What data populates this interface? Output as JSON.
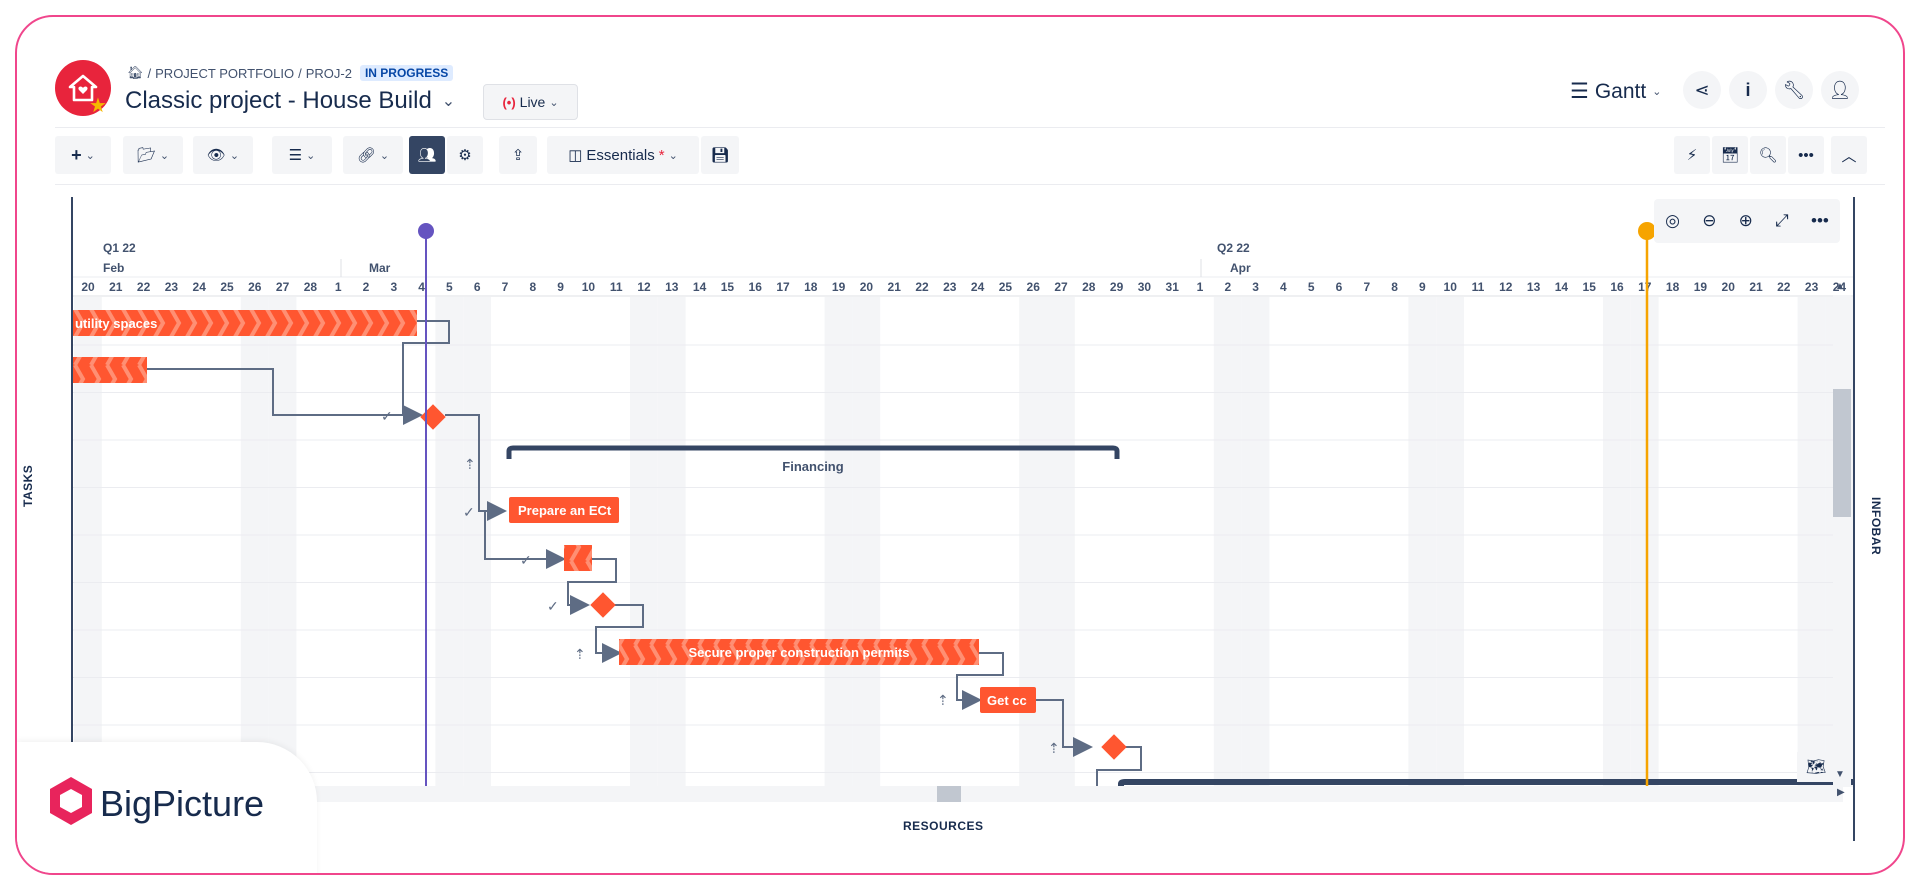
{
  "header": {
    "breadcrumb": [
      "PROJECT PORTFOLIO",
      "PROJ-2"
    ],
    "status_badge": "IN PROGRESS",
    "title": "Classic project - House Build",
    "live_label": "Live",
    "view_label": "Gantt"
  },
  "toolbar": {
    "essentials_label": "Essentials",
    "essentials_marker": "*"
  },
  "timeline": {
    "quarters": [
      "Q1 22",
      "Q2 22"
    ],
    "months": [
      "Feb",
      "Mar",
      "Apr"
    ],
    "days": [
      "20",
      "21",
      "22",
      "23",
      "24",
      "25",
      "26",
      "27",
      "28",
      "1",
      "2",
      "3",
      "4",
      "5",
      "6",
      "7",
      "8",
      "9",
      "10",
      "11",
      "12",
      "13",
      "14",
      "15",
      "16",
      "17",
      "18",
      "19",
      "20",
      "21",
      "22",
      "23",
      "24",
      "25",
      "26",
      "27",
      "28",
      "29",
      "30",
      "31",
      "1",
      "2",
      "3",
      "4",
      "5",
      "6",
      "7",
      "8",
      "9",
      "10",
      "11",
      "12",
      "13",
      "14",
      "15",
      "16",
      "17",
      "18",
      "19",
      "20",
      "21",
      "22",
      "23",
      "24"
    ]
  },
  "tasks": {
    "bar_utility": "utility spaces",
    "group_financing": "Financing",
    "bar_prepare": "Prepare an ECt",
    "bar_permits": "Secure proper construction permits",
    "bar_get": "Get cc"
  },
  "panels": {
    "tasks_label": "TASKS",
    "infobar_label": "INFOBAR",
    "resources_label": "RESOURCES"
  },
  "brand": {
    "name": "BigPicture",
    "accent": "#f0468c",
    "bar_color": "#ff5630",
    "today_color": "#6554c0",
    "marker_color": "#f6a400"
  },
  "icons": [
    "home-icon",
    "add-icon",
    "folder-icon",
    "eye-icon",
    "list-icon",
    "link-icon",
    "team-icon",
    "gear-icon",
    "export-icon",
    "save-icon",
    "bolt-icon",
    "calendar-icon",
    "search-icon",
    "more-icon",
    "collapse-icon",
    "share-icon",
    "info-icon",
    "wrench-icon",
    "user-icon",
    "zoom-in-icon",
    "zoom-out-icon",
    "target-icon",
    "expand-icon",
    "map-icon"
  ]
}
